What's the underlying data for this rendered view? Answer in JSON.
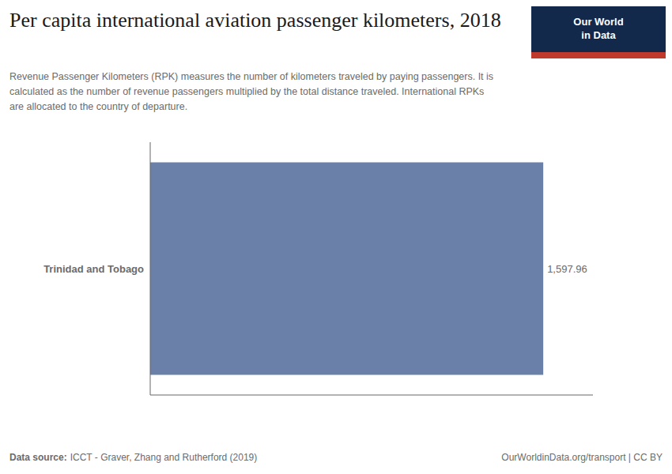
{
  "chart_data": {
    "type": "bar",
    "orientation": "horizontal",
    "title": "Per capita international aviation passenger kilometers, 2018",
    "subtitle": "Revenue Passenger Kilometers (RPK) measures the number of kilometers traveled by paying passengers. It is\ncalculated as the number of revenue passengers multiplied by the total distance traveled. International RPKs\nare allocated to the country of departure.",
    "categories": [
      "Trinidad and Tobago"
    ],
    "values": [
      1597.96
    ],
    "value_labels": [
      "1,597.96"
    ],
    "data_labels": true,
    "color": "#6b80a8",
    "xlim": [
      0,
      1800
    ],
    "tick_labels": "y",
    "annotations": [
      "Data source:",
      "ICCT - Graver, Zhang and Rutherford (2019)",
      "OurWorldinData.org/transport | CC BY",
      "Our World\nin Data"
    ]
  }
}
